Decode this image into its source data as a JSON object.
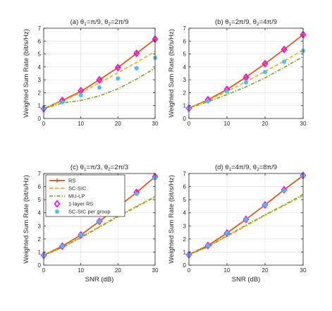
{
  "chart_data": [
    {
      "type": "line",
      "title": "(a) θ1=π/9, θ2=2π/9",
      "title_parts": {
        "label": "(a)",
        "theta1_value": "=π/9",
        "theta2_value": "=2π/9"
      },
      "xlabel": "",
      "ylabel": "Weighted Sum Rate (bit/s/Hz)",
      "xlim": [
        0,
        30
      ],
      "ylim": [
        0,
        7
      ],
      "xticks": [
        "0",
        "10",
        "20",
        "30"
      ],
      "yticks": [
        "0",
        "1",
        "2",
        "3",
        "4",
        "5",
        "6",
        "7"
      ],
      "grid": true,
      "x": [
        0,
        5,
        10,
        15,
        20,
        25,
        30
      ],
      "series": [
        {
          "name": "RS",
          "values": [
            0.75,
            1.4,
            2.1,
            3.0,
            3.95,
            5.05,
            6.15
          ]
        },
        {
          "name": "SC-SIC",
          "values": [
            0.75,
            1.35,
            2.0,
            2.75,
            3.55,
            4.35,
            5.2
          ]
        },
        {
          "name": "MU-LP",
          "values": [
            0.75,
            1.2,
            1.4,
            1.75,
            2.3,
            3.05,
            3.9
          ]
        },
        {
          "name": "1-layer RS",
          "values": [
            0.75,
            1.4,
            2.15,
            3.0,
            3.95,
            5.05,
            6.15
          ]
        },
        {
          "name": "SC-SIC per group",
          "values": [
            0.75,
            1.25,
            1.8,
            2.4,
            3.1,
            3.9,
            4.7
          ]
        }
      ]
    },
    {
      "type": "line",
      "title": "(b) θ1=2π/9, θ2=4π/9",
      "title_parts": {
        "label": "(b)",
        "theta1_value": "=2π/9",
        "theta2_value": "=4π/9"
      },
      "xlabel": "",
      "ylabel": "Weighted Sum Rate (bit/s/Hz)",
      "xlim": [
        0,
        30
      ],
      "ylim": [
        0,
        7
      ],
      "xticks": [
        "0",
        "10",
        "20",
        "30"
      ],
      "yticks": [
        "0",
        "1",
        "2",
        "3",
        "4",
        "5",
        "6",
        "7"
      ],
      "grid": true,
      "x": [
        0,
        5,
        10,
        15,
        20,
        25,
        30
      ],
      "series": [
        {
          "name": "RS",
          "values": [
            0.8,
            1.45,
            2.25,
            3.2,
            4.25,
            5.35,
            6.5
          ]
        },
        {
          "name": "SC-SIC",
          "values": [
            0.8,
            1.4,
            2.1,
            2.85,
            3.65,
            4.45,
            5.3
          ]
        },
        {
          "name": "MU-LP",
          "values": [
            0.8,
            1.3,
            1.85,
            2.45,
            3.15,
            3.95,
            4.8
          ]
        },
        {
          "name": "1-layer RS",
          "values": [
            0.8,
            1.45,
            2.25,
            3.2,
            4.25,
            5.35,
            6.5
          ]
        },
        {
          "name": "SC-SIC per group",
          "values": [
            0.8,
            1.35,
            2.1,
            2.8,
            3.6,
            4.4,
            5.25
          ]
        }
      ]
    },
    {
      "type": "line",
      "title": "(c) θ1=π/3, θ2=2π/3",
      "title_parts": {
        "label": "(c)",
        "theta1_value": "=π/3",
        "theta2_value": "=2π/3"
      },
      "xlabel": "SNR (dB)",
      "ylabel": "Weighted Sum Rate (bit/s/Hz)",
      "xlim": [
        0,
        30
      ],
      "ylim": [
        0,
        7
      ],
      "xticks": [
        "0",
        "10",
        "20",
        "30"
      ],
      "yticks": [
        "0",
        "1",
        "2",
        "3",
        "4",
        "5",
        "6",
        "7"
      ],
      "grid": true,
      "legend": "top-left",
      "x": [
        0,
        5,
        10,
        15,
        20,
        25,
        30
      ],
      "series": [
        {
          "name": "RS",
          "values": [
            0.75,
            1.45,
            2.3,
            3.35,
            4.45,
            5.55,
            6.75
          ]
        },
        {
          "name": "SC-SIC",
          "values": [
            0.75,
            1.35,
            2.15,
            2.95,
            3.75,
            4.5,
            5.25
          ]
        },
        {
          "name": "MU-LP",
          "values": [
            0.75,
            1.35,
            2.1,
            2.9,
            3.7,
            4.45,
            5.2
          ]
        },
        {
          "name": "1-layer RS",
          "values": [
            0.75,
            1.45,
            2.3,
            3.35,
            4.45,
            5.55,
            6.75
          ]
        },
        {
          "name": "SC-SIC per group",
          "values": [
            0.75,
            1.45,
            2.3,
            3.35,
            4.35,
            5.45,
            6.65
          ]
        }
      ]
    },
    {
      "type": "line",
      "title": "(d) θ1=4π/9, θ2=8π/9",
      "title_parts": {
        "label": "(d)",
        "theta1_value": "=4π/9",
        "theta2_value": "=8π/9"
      },
      "xlabel": "SNR (dB)",
      "ylabel": "Weighted Sum Rate (bit/s/Hz)",
      "xlim": [
        0,
        30
      ],
      "ylim": [
        0,
        7
      ],
      "xticks": [
        "0",
        "10",
        "20",
        "30"
      ],
      "yticks": [
        "0",
        "1",
        "2",
        "3",
        "4",
        "5",
        "6",
        "7"
      ],
      "grid": true,
      "x": [
        0,
        5,
        10,
        15,
        20,
        25,
        30
      ],
      "series": [
        {
          "name": "RS",
          "values": [
            0.8,
            1.5,
            2.45,
            3.5,
            4.6,
            5.75,
            6.85
          ]
        },
        {
          "name": "SC-SIC",
          "values": [
            0.8,
            1.4,
            2.2,
            3.0,
            3.8,
            4.55,
            5.3
          ]
        },
        {
          "name": "MU-LP",
          "values": [
            0.8,
            1.4,
            2.25,
            3.05,
            3.85,
            4.6,
            5.4
          ]
        },
        {
          "name": "1-layer RS",
          "values": [
            0.8,
            1.5,
            2.45,
            3.5,
            4.6,
            5.75,
            6.85
          ]
        },
        {
          "name": "SC-SIC per group",
          "values": [
            0.8,
            1.5,
            2.45,
            3.5,
            4.6,
            5.7,
            6.85
          ]
        }
      ]
    }
  ],
  "styles": {
    "series_colors": {
      "RS": "#d95319",
      "SC-SIC": "#edb120",
      "MU-LP": "#77ac30",
      "1-layer RS": "#ff00ff",
      "SC-SIC per group": "#4dbeee"
    },
    "grid_color": "#e6e6e6",
    "axis_color": "#262626",
    "line_styles": {
      "RS": "solid-plus-marker",
      "SC-SIC": "dashed",
      "MU-LP": "dash-dot",
      "1-layer RS": "diamond-marker-only",
      "SC-SIC per group": "asterisk-marker-only"
    }
  }
}
